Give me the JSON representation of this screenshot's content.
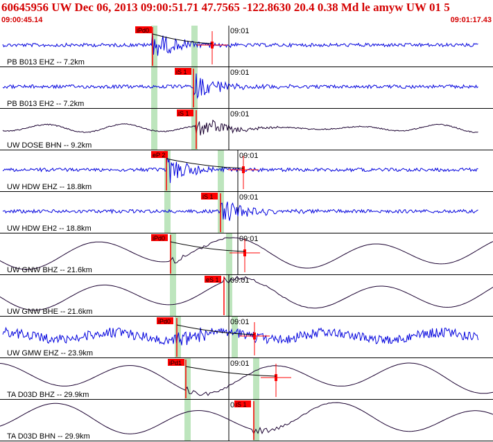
{
  "header": {
    "title": "60645956 UW Dec 06, 2013 09:00:51.71    47.7565 -122.8630 20.4 0.38 Md le amyw UW 01    5",
    "time_start": "09:00:45.14",
    "time_end": "09:01:17.43"
  },
  "colors": {
    "title": "#d40000",
    "blue_trace": "#0000dd",
    "dark_trace": "#1a0030",
    "pick": "#ff0000",
    "window": "#bde5bd"
  },
  "time_tick_label": "09:01",
  "channels": [
    {
      "label": "PB B013 EHZ -- 7.2km",
      "pick": "iPd0",
      "color": "blue",
      "noise": "hf"
    },
    {
      "label": "PB B013 EH2 -- 7.2km",
      "pick": "iS 1",
      "color": "blue",
      "noise": "hf"
    },
    {
      "label": "UW DOSE BHN -- 9.2km",
      "pick": "iS 1",
      "color": "dark",
      "noise": "lf"
    },
    {
      "label": "UW HDW EHZ -- 18.8km",
      "pick": "eP 2",
      "color": "blue",
      "noise": "hf"
    },
    {
      "label": "UW HDW EH2 -- 18.8km",
      "pick": "iS 1",
      "color": "blue",
      "noise": "hf"
    },
    {
      "label": "UW GNW BHZ -- 21.6km",
      "pick": "iPd0",
      "color": "dark",
      "noise": "wave"
    },
    {
      "label": "UW GNW BHE -- 21.6km",
      "pick": "eS 1",
      "color": "dark",
      "noise": "wave"
    },
    {
      "label": "UW GMW EHZ -- 23.9km",
      "pick": "iPd0",
      "color": "blue",
      "noise": "hfbig"
    },
    {
      "label": "TA D03D BHZ -- 29.9km",
      "pick": "iPd1",
      "color": "dark",
      "noise": "wave"
    },
    {
      "label": "TA D03D BHN -- 29.9km",
      "pick": "iS 1",
      "color": "dark",
      "noise": "wave"
    }
  ]
}
